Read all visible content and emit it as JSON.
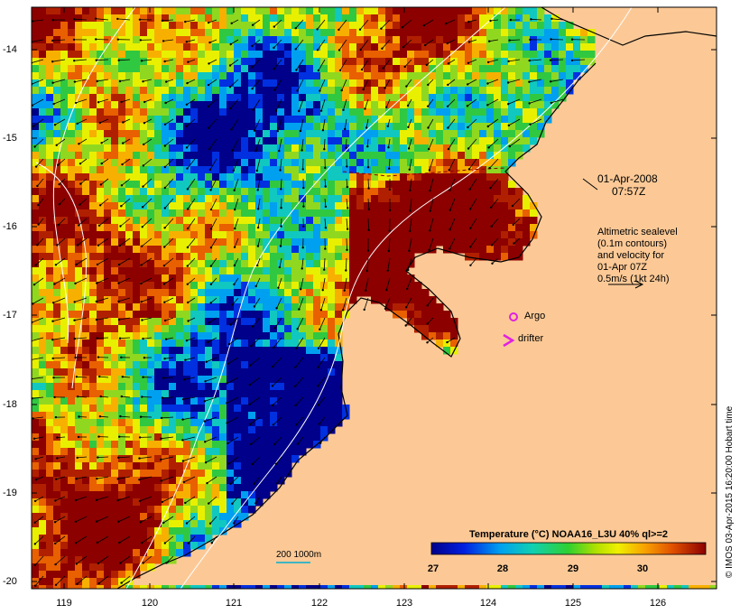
{
  "map": {
    "date": "01-Apr-2008",
    "time": "07:57Z",
    "legend_lines": [
      "Altimetric sealevel",
      "(0.1m contours)",
      "and velocity for",
      "01-Apr 07Z",
      "0.5m/s (1kt 24h)"
    ],
    "argo_label": "Argo",
    "drifter_label": "drifter",
    "scale_label": "200 1000m",
    "credit": "© IMOS 03-Apr-2015 16:20:00 Hobart time",
    "x_ticks": [
      "119",
      "120",
      "121",
      "122",
      "123",
      "124",
      "125",
      "126"
    ],
    "y_ticks": [
      "-14",
      "-15",
      "-16",
      "-17",
      "-18",
      "-19",
      "-20"
    ],
    "colorbar": {
      "title": "Temperature (°C) NOAA16_L3U 40% ql>=2",
      "ticks": [
        "27",
        "28",
        "29",
        "30"
      ],
      "range": [
        26.8,
        30.8
      ]
    },
    "colors": {
      "land": "#fcc996",
      "argo": "#e020e0",
      "drifter": "#e020e0"
    }
  }
}
